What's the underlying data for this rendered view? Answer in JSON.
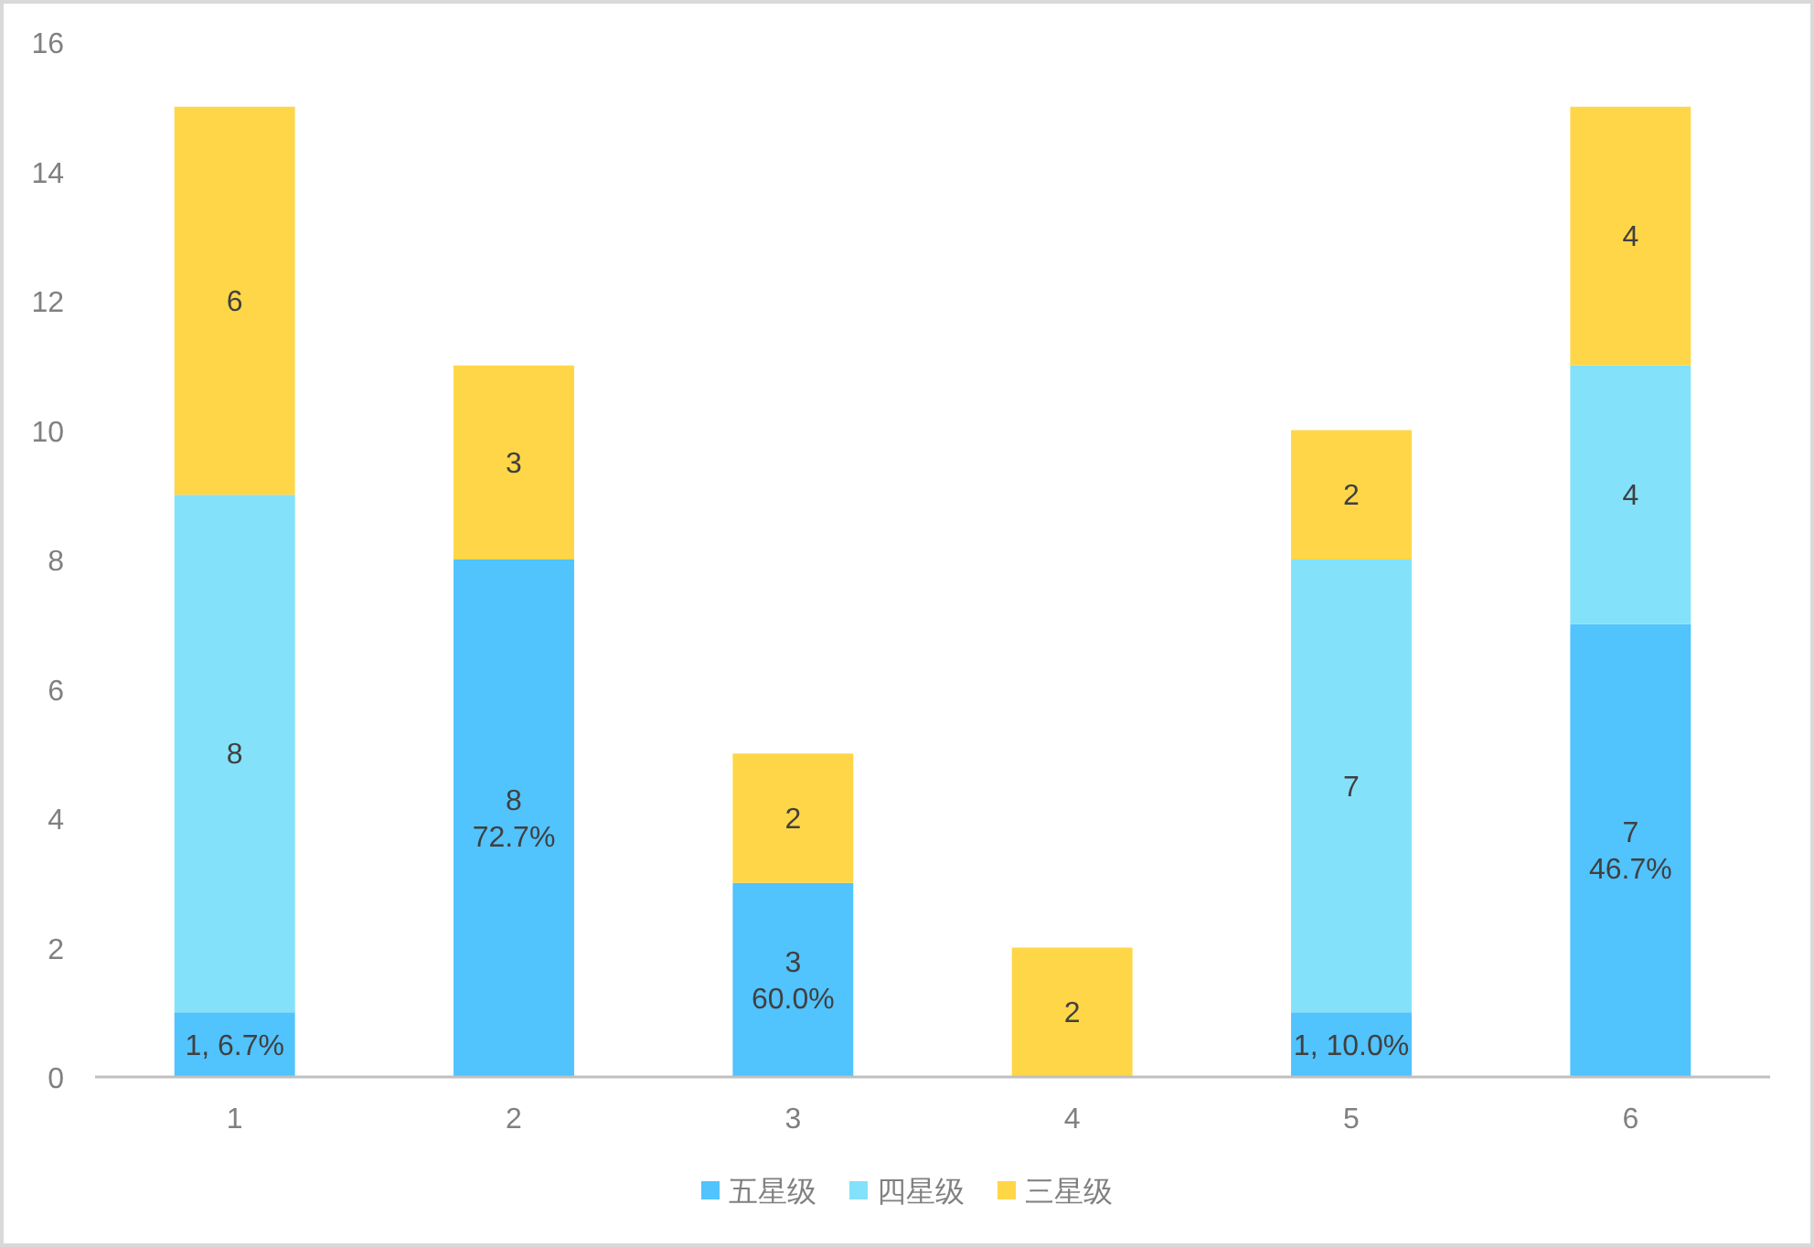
{
  "chart_data": {
    "type": "bar",
    "stacked": true,
    "categories": [
      "1",
      "2",
      "3",
      "4",
      "5",
      "6"
    ],
    "series": [
      {
        "name": "五星级",
        "color": "#51c3fd",
        "values": [
          1,
          8,
          3,
          null,
          1,
          7
        ],
        "value_labels": [
          "1, 6.7%",
          "8\n72.7%",
          "3\n60.0%",
          null,
          "1, 10.0%",
          "7\n46.7%"
        ]
      },
      {
        "name": "四星级",
        "color": "#84e1fa",
        "values": [
          8,
          null,
          null,
          null,
          7,
          4
        ],
        "value_labels": [
          "8",
          null,
          null,
          null,
          "7",
          "4"
        ]
      },
      {
        "name": "三星级",
        "color": "#ffd648",
        "values": [
          6,
          3,
          2,
          2,
          2,
          4
        ],
        "value_labels": [
          "6",
          "3",
          "2",
          "2",
          "2",
          "4"
        ]
      }
    ],
    "ylim": [
      0,
      16
    ],
    "yticks": [
      0,
      2,
      4,
      6,
      8,
      10,
      12,
      14,
      16
    ],
    "legend": "bottom"
  }
}
